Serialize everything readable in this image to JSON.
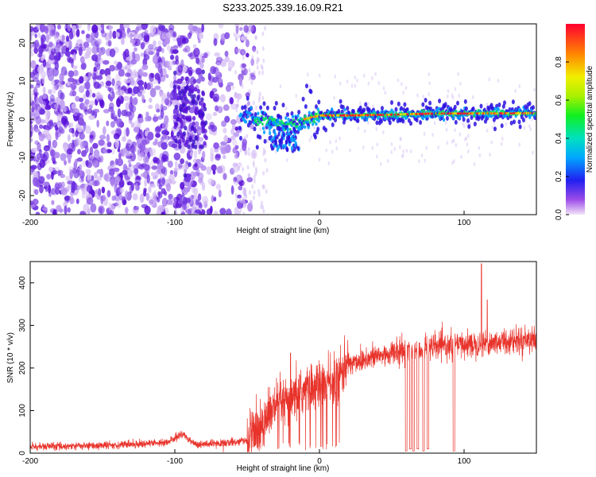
{
  "title": "S233.2025.339.16.09.R21",
  "chart_data": [
    {
      "type": "heatmap",
      "title": "S233.2025.339.16.09.R21",
      "xlabel": "Height of straight line (km)",
      "ylabel": "Frequency (Hz)",
      "xlim": [
        -200,
        150
      ],
      "ylim": [
        -25,
        25
      ],
      "xticks": [
        -200,
        -100,
        0,
        100
      ],
      "xtick_labels": [
        "-200",
        "-100",
        "0",
        "100"
      ],
      "yticks": [
        -20,
        -10,
        0,
        10,
        20
      ],
      "ytick_labels": [
        "-20",
        "-10",
        "0",
        "10",
        "20"
      ],
      "ridge": {
        "description_points_km_hz": [
          [
            -50,
            0.5
          ],
          [
            -30,
            -1
          ],
          [
            -20,
            -1.5
          ],
          [
            -10,
            0
          ],
          [
            0,
            1
          ],
          [
            20,
            1
          ],
          [
            50,
            1.2
          ],
          [
            80,
            1.5
          ],
          [
            100,
            1.5
          ],
          [
            150,
            1.6
          ]
        ]
      },
      "colorbar": {
        "label": "Normalized spectral amplitude",
        "range": [
          0,
          1
        ],
        "ticks": [
          0.0,
          0.2,
          0.4,
          0.6,
          0.8
        ],
        "tick_labels": [
          "0.0",
          "0.2",
          "0.4",
          "0.6",
          "0.8"
        ]
      }
    },
    {
      "type": "line",
      "xlabel": "Height of straight line (km)",
      "ylabel": "SNR (10 * v/v)",
      "xlim": [
        -200,
        150
      ],
      "ylim": [
        0,
        450
      ],
      "xticks": [
        -200,
        -100,
        0,
        100
      ],
      "xtick_labels": [
        "-200",
        "-100",
        "0",
        "100"
      ],
      "yticks": [
        0,
        100,
        200,
        300,
        400
      ],
      "ytick_labels": [
        "0",
        "100",
        "200",
        "300",
        "400"
      ],
      "series": [
        {
          "name": "SNR",
          "color": "#e8332b",
          "trend_x": [
            -200,
            -150,
            -105,
            -95,
            -85,
            -70,
            -50,
            -40,
            -30,
            -20,
            -10,
            0,
            10,
            20,
            30,
            50,
            80,
            100,
            120,
            150
          ],
          "trend_y": [
            15,
            18,
            25,
            45,
            20,
            22,
            30,
            70,
            110,
            120,
            150,
            160,
            170,
            210,
            220,
            235,
            250,
            255,
            260,
            270
          ],
          "dips_x": [
            60,
            63,
            65,
            68,
            72,
            75,
            93
          ],
          "dips_y": [
            5,
            10,
            5,
            10,
            5,
            10,
            5
          ],
          "spikes_x": [
            -20,
            112,
            116
          ],
          "spikes_y": [
            235,
            445,
            360
          ]
        }
      ]
    }
  ]
}
